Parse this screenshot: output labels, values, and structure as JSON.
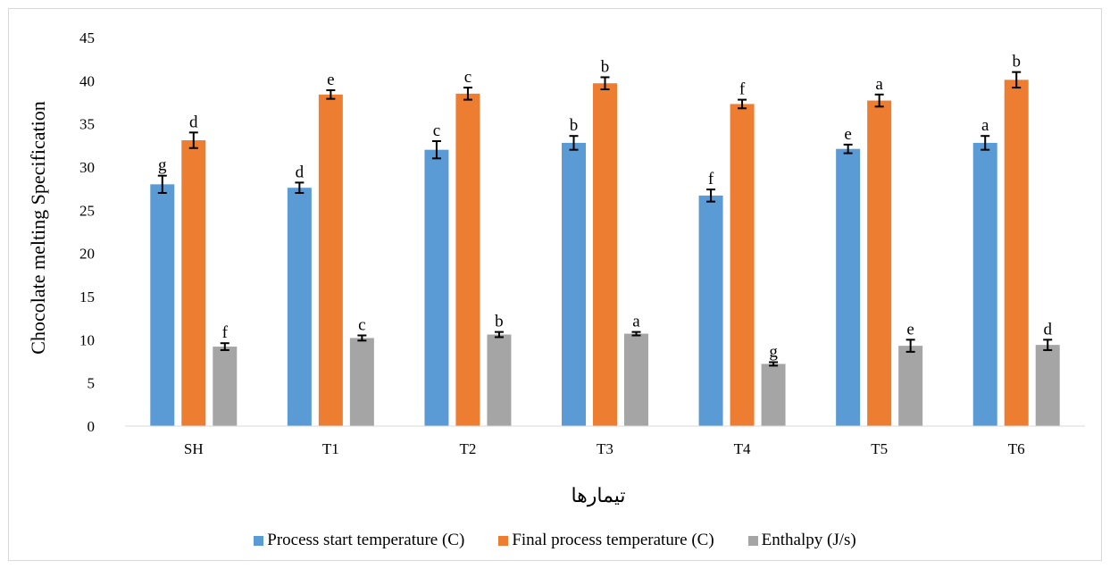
{
  "chart_data": {
    "type": "bar",
    "categories": [
      "SH",
      "T1",
      "T2",
      "T3",
      "T4",
      "T5",
      "T6"
    ],
    "ylabel": "Chocolate melting Specification",
    "xlabel": "تیمارها",
    "ylim": [
      0,
      45
    ],
    "yticks": [
      0,
      5,
      10,
      15,
      20,
      25,
      30,
      35,
      40,
      45
    ],
    "grid": false,
    "legend_position": "bottom",
    "series": [
      {
        "name": "Process start temperature (C)",
        "color": "#5b9bd5",
        "values": [
          28.0,
          27.6,
          32.0,
          32.8,
          26.7,
          32.1,
          32.8
        ],
        "errors": [
          1.0,
          0.6,
          1.0,
          0.8,
          0.7,
          0.5,
          0.8
        ],
        "letters": [
          "g",
          "d",
          "c",
          "b",
          "f",
          "e",
          "a"
        ]
      },
      {
        "name": "Final process temperature (C)",
        "color": "#ed7d31",
        "values": [
          33.1,
          38.4,
          38.5,
          39.7,
          37.3,
          37.7,
          40.1
        ],
        "errors": [
          0.9,
          0.5,
          0.7,
          0.7,
          0.5,
          0.7,
          0.9
        ],
        "letters": [
          "d",
          "e",
          "c",
          "b",
          "f",
          "a",
          "b"
        ]
      },
      {
        "name": "Enthalpy (J/s)",
        "color": "#a5a5a5",
        "values": [
          9.2,
          10.2,
          10.6,
          10.7,
          7.2,
          9.3,
          9.4
        ],
        "errors": [
          0.4,
          0.3,
          0.3,
          0.2,
          0.2,
          0.7,
          0.6
        ],
        "letters": [
          "f",
          "c",
          "b",
          "a",
          "g",
          "e",
          "d"
        ]
      }
    ]
  }
}
